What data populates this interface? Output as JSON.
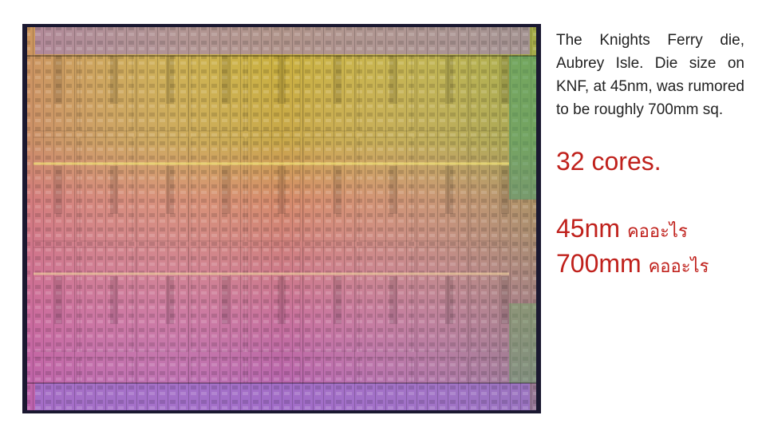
{
  "slide": {
    "description": "The Knights Ferry die, Aubrey Isle. Die size on KNF, at 45nm, was rumored to be roughly 700mm sq.",
    "cores": "32 cores.",
    "questions": [
      {
        "term": "45nm",
        "question": "คออะไร"
      },
      {
        "term": "700mm",
        "question": "คออะไร"
      }
    ]
  }
}
